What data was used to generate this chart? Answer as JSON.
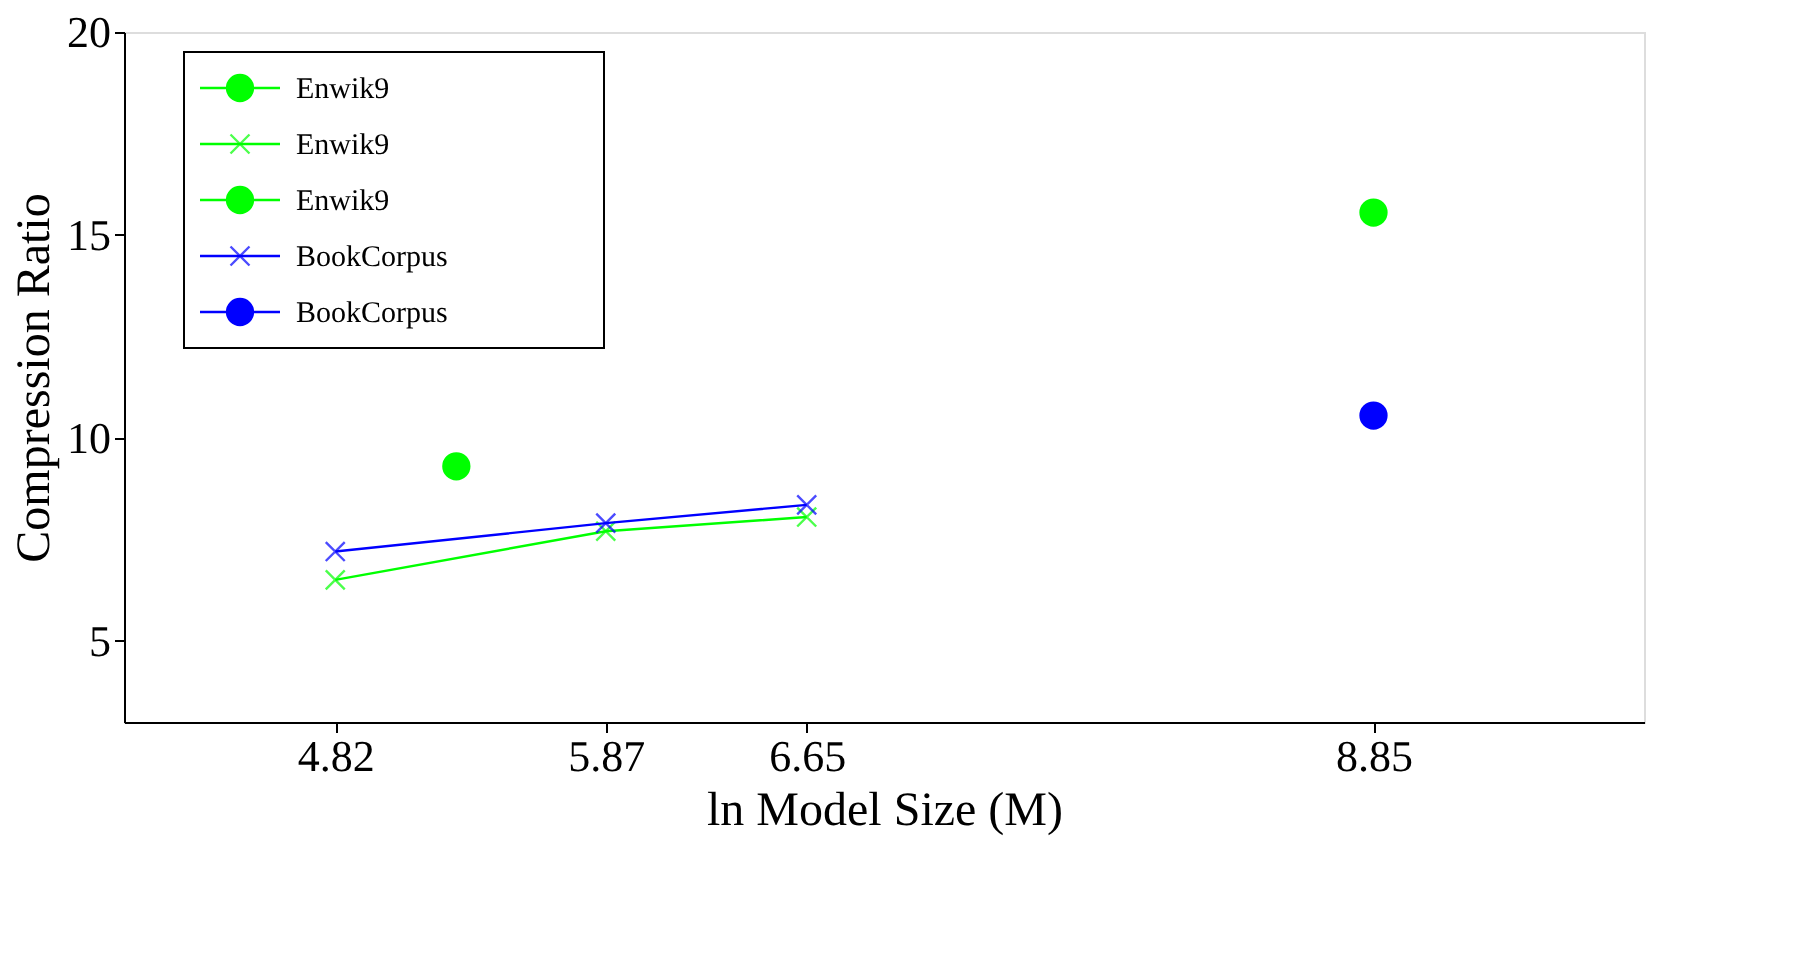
{
  "chart_data": {
    "type": "line",
    "xlabel": "ln Model Size (M)",
    "ylabel": "Compression Ratio",
    "xlim": [
      4,
      9.9
    ],
    "ylim": [
      3,
      20
    ],
    "xticks": [
      4.82,
      5.87,
      6.65,
      8.85
    ],
    "yticks": [
      5,
      10,
      15,
      20
    ],
    "grid": false,
    "legend": "top left",
    "line_style": "solid",
    "series": [
      {
        "name": "Enwik9",
        "type": "scatter",
        "marker": "circle",
        "color": "#00ff00",
        "x": [
          5.29
        ],
        "values": [
          9.3
        ]
      },
      {
        "name": "Enwik9",
        "marker": "cross",
        "color": "#00ff00",
        "x": [
          4.82,
          5.87,
          6.65
        ],
        "values": [
          6.5,
          7.7,
          8.05
        ]
      },
      {
        "name": "Enwik9",
        "type": "scatter",
        "marker": "circle",
        "color": "#00ff00",
        "x": [
          8.85
        ],
        "values": [
          15.55
        ]
      },
      {
        "name": "BookCorpus",
        "marker": "cross",
        "color": "#0000ff",
        "x": [
          4.82,
          5.87,
          6.65
        ],
        "values": [
          7.2,
          7.9,
          8.35
        ]
      },
      {
        "name": "BookCorpus",
        "type": "scatter",
        "marker": "circle",
        "color": "#0000ff",
        "x": [
          8.85
        ],
        "values": [
          10.55
        ]
      }
    ]
  }
}
